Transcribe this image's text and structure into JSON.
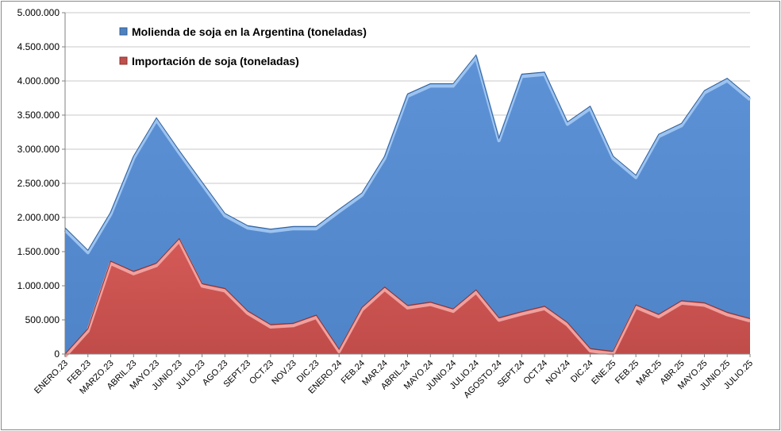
{
  "chart_data": {
    "type": "area",
    "categories": [
      "ENERO.23",
      "FEB.23",
      "MARZO.23",
      "ABRIL.23",
      "MAYO.23",
      "JUNIO.23",
      "JULIO.23",
      "AGO.23",
      "SEPT.23",
      "OCT.23",
      "NOV.23",
      "DIC.23",
      "ENERO.24",
      "FEB.24",
      "MAR.24",
      "ABRIL.24",
      "MAYO.24",
      "JUNIO.24",
      "JULIO.24",
      "AGOSTO.24",
      "SEPT.24",
      "OCT.24",
      "NOV.24",
      "DIC.24",
      "ENE.25",
      "FEB.25",
      "MAR.25",
      "ABR.25",
      "MAYO.25",
      "JUNIO.25",
      "JULIO.25"
    ],
    "series": [
      {
        "name": "Molienda de soja en la Argentina (toneladas)",
        "color": "#5b8fd1",
        "values": [
          1850000,
          1520000,
          2080000,
          2900000,
          3460000,
          2980000,
          2520000,
          2060000,
          1880000,
          1830000,
          1870000,
          1870000,
          2120000,
          2360000,
          2900000,
          3810000,
          3960000,
          3960000,
          4380000,
          3160000,
          4100000,
          4130000,
          3400000,
          3630000,
          2900000,
          2620000,
          3220000,
          3380000,
          3860000,
          4040000,
          3760000
        ]
      },
      {
        "name": "Importación de soja (toneladas)",
        "color": "#c0504d",
        "values": [
          0,
          370000,
          1360000,
          1210000,
          1330000,
          1690000,
          1030000,
          960000,
          630000,
          430000,
          450000,
          570000,
          70000,
          680000,
          980000,
          710000,
          760000,
          660000,
          940000,
          530000,
          620000,
          700000,
          460000,
          80000,
          40000,
          720000,
          580000,
          780000,
          750000,
          610000,
          520000
        ]
      }
    ],
    "ylim": [
      0,
      5000000
    ],
    "yticks": [
      0,
      500000,
      1000000,
      1500000,
      2000000,
      2500000,
      3000000,
      3500000,
      4000000,
      4500000,
      5000000
    ],
    "ytick_labels": [
      "0",
      "500.000",
      "1.000.000",
      "1.500.000",
      "2.000.000",
      "2.500.000",
      "3.000.000",
      "3.500.000",
      "4.000.000",
      "4.500.000",
      "5.000.000"
    ],
    "legend_position": "top-left"
  }
}
